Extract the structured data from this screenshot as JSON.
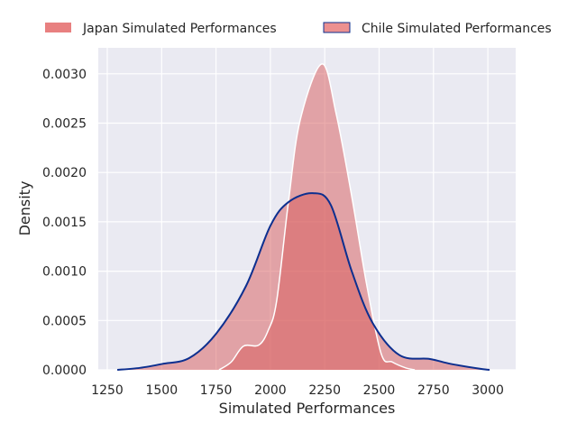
{
  "chart_data": {
    "type": "area",
    "title": "",
    "xlabel": "Simulated Performances",
    "ylabel": "Density",
    "xlim": [
      1200,
      3120
    ],
    "ylim": [
      0,
      0.00326
    ],
    "xticks": [
      1250,
      1500,
      1750,
      2000,
      2250,
      2500,
      2750,
      3000
    ],
    "xtick_labels": [
      "1250",
      "1500",
      "1750",
      "2000",
      "2250",
      "2500",
      "2750",
      "3000"
    ],
    "yticks": [
      0,
      0.0005,
      0.001,
      0.0015,
      0.002,
      0.0025,
      0.003
    ],
    "ytick_labels": [
      "0.0000",
      "0.0005",
      "0.0010",
      "0.0015",
      "0.0020",
      "0.0025",
      "0.0030"
    ],
    "grid": true,
    "legend_position": "top, outside",
    "background": "#eaeaf2",
    "series": [
      {
        "name": "Japan Simulated Performances",
        "fill_color": "#d75a5a",
        "edge_color": "#ffffff",
        "legend_color": "#e88080",
        "x": [
          1764,
          1820,
          1876,
          1946,
          1990,
          2029,
          2083,
          2137,
          2237,
          2303,
          2374,
          2444,
          2510,
          2560,
          2622,
          2664
        ],
        "y": [
          0,
          8e-05,
          0.00024,
          0.00025,
          0.0004,
          0.0007,
          0.0017,
          0.00253,
          0.0031,
          0.00259,
          0.00176,
          0.00085,
          0.00016,
          8e-05,
          2e-05,
          0
        ]
      },
      {
        "name": "Chile Simulated Performances",
        "fill_color": "#d75a5a",
        "edge_color": "#0d2f8f",
        "legend_color": "#ec9090",
        "x": [
          1296,
          1400,
          1503,
          1627,
          1752,
          1888,
          2000,
          2083,
          2195,
          2278,
          2374,
          2469,
          2593,
          2734,
          2830,
          2967,
          3008
        ],
        "y": [
          0,
          2e-05,
          6e-05,
          0.00012,
          0.00037,
          0.00085,
          0.00146,
          0.0017,
          0.00179,
          0.00167,
          0.001,
          0.00048,
          0.00015,
          0.00011,
          6e-05,
          1e-05,
          0
        ]
      }
    ]
  }
}
